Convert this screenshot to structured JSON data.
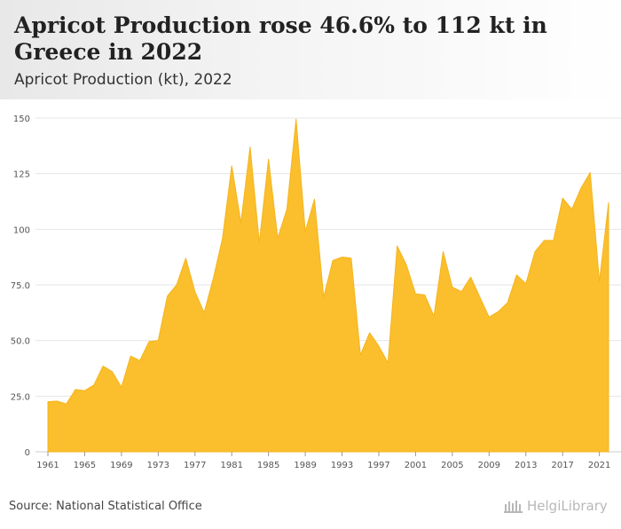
{
  "header": {
    "title": "Apricot Production rose 46.6% to 112 kt in Greece in 2022",
    "subtitle": "Apricot Production (kt), 2022"
  },
  "footer": {
    "source": "Source: National Statistical Office",
    "brand": "HelgiLibrary"
  },
  "colors": {
    "area_fill": "#fbbf2d",
    "area_stroke": "#f4b41c",
    "grid": "#e6e6e6",
    "tick_text": "#555555"
  },
  "chart_data": {
    "type": "area",
    "title": "",
    "xlabel": "",
    "ylabel": "",
    "ylim": [
      0,
      150
    ],
    "yticks": [
      0,
      25.0,
      50.0,
      75.0,
      100,
      125,
      150
    ],
    "ytick_labels": [
      "0",
      "25.0",
      "50.0",
      "75.0",
      "100",
      "125",
      "150"
    ],
    "xlim": [
      1961,
      2022
    ],
    "xticks": [
      1961,
      1965,
      1969,
      1973,
      1977,
      1981,
      1985,
      1989,
      1993,
      1997,
      2001,
      2005,
      2009,
      2013,
      2017,
      2021
    ],
    "grid": true,
    "x": [
      1961,
      1962,
      1963,
      1964,
      1965,
      1966,
      1967,
      1968,
      1969,
      1970,
      1971,
      1972,
      1973,
      1974,
      1975,
      1976,
      1977,
      1978,
      1979,
      1980,
      1981,
      1982,
      1983,
      1984,
      1985,
      1986,
      1987,
      1988,
      1989,
      1990,
      1991,
      1992,
      1993,
      1994,
      1995,
      1996,
      1997,
      1998,
      1999,
      2000,
      2001,
      2002,
      2003,
      2004,
      2005,
      2006,
      2007,
      2008,
      2009,
      2010,
      2011,
      2012,
      2013,
      2014,
      2015,
      2016,
      2017,
      2018,
      2019,
      2020,
      2021,
      2022
    ],
    "values": [
      22.5,
      22.8,
      21.5,
      28.0,
      27.5,
      30.0,
      38.5,
      36.0,
      29.0,
      43.0,
      41.0,
      49.5,
      50.0,
      70.0,
      75.0,
      87.0,
      72.0,
      62.5,
      78.0,
      96.0,
      128.5,
      103.0,
      137.0,
      94.0,
      131.5,
      96.0,
      109.0,
      149.5,
      99.0,
      113.5,
      69.5,
      86.0,
      87.5,
      87.0,
      43.5,
      53.5,
      47.5,
      40.0,
      92.5,
      84.0,
      71.0,
      70.5,
      61.0,
      90.0,
      74.0,
      72.0,
      78.5,
      69.5,
      60.5,
      63.0,
      67.0,
      79.5,
      75.5,
      90.0,
      95.0,
      95.0,
      114.0,
      109.0,
      118.5,
      125.5,
      76.5,
      112.0
    ]
  }
}
